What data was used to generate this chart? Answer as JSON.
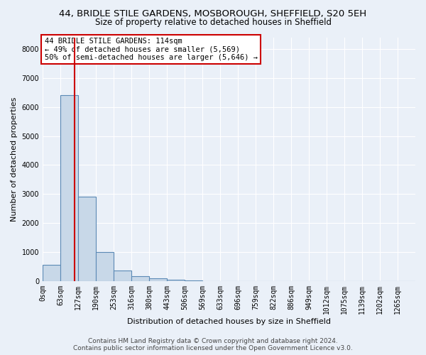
{
  "title_line1": "44, BRIDLE STILE GARDENS, MOSBOROUGH, SHEFFIELD, S20 5EH",
  "title_line2": "Size of property relative to detached houses in Sheffield",
  "xlabel": "Distribution of detached houses by size in Sheffield",
  "ylabel": "Number of detached properties",
  "bin_labels": [
    "0sqm",
    "63sqm",
    "127sqm",
    "190sqm",
    "253sqm",
    "316sqm",
    "380sqm",
    "443sqm",
    "506sqm",
    "569sqm",
    "633sqm",
    "696sqm",
    "759sqm",
    "822sqm",
    "886sqm",
    "949sqm",
    "1012sqm",
    "1075sqm",
    "1139sqm",
    "1202sqm",
    "1265sqm"
  ],
  "bar_values": [
    560,
    6400,
    2900,
    1000,
    370,
    160,
    100,
    55,
    35,
    0,
    0,
    0,
    0,
    0,
    0,
    0,
    0,
    0,
    0,
    0,
    0
  ],
  "bar_color": "#c8d8e8",
  "bar_edgecolor": "#5b8ab5",
  "bar_linewidth": 0.8,
  "ylim": [
    0,
    8400
  ],
  "yticks": [
    0,
    1000,
    2000,
    3000,
    4000,
    5000,
    6000,
    7000,
    8000
  ],
  "vline_x": 1.8,
  "vline_color": "#cc0000",
  "vline_linewidth": 1.5,
  "annotation_line1": "44 BRIDLE STILE GARDENS: 114sqm",
  "annotation_line2": "← 49% of detached houses are smaller (5,569)",
  "annotation_line3": "50% of semi-detached houses are larger (5,646) →",
  "annotation_box_edgecolor": "#cc0000",
  "annotation_box_facecolor": "#ffffff",
  "footer_line1": "Contains HM Land Registry data © Crown copyright and database right 2024.",
  "footer_line2": "Contains public sector information licensed under the Open Government Licence v3.0.",
  "background_color": "#eaf0f8",
  "plot_background": "#eaf0f8",
  "grid_color": "#ffffff",
  "title_fontsize": 9.5,
  "subtitle_fontsize": 8.5,
  "tick_fontsize": 7,
  "ylabel_fontsize": 8,
  "xlabel_fontsize": 8,
  "footer_fontsize": 6.5
}
